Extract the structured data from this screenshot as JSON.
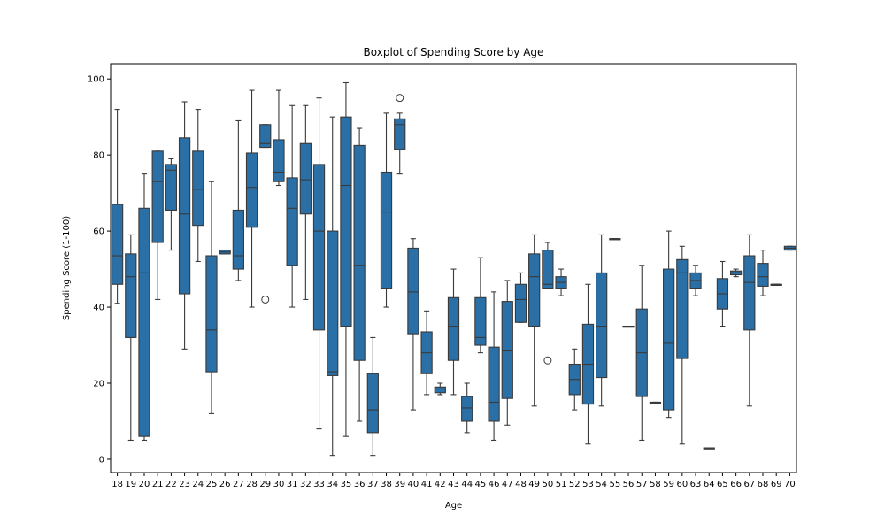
{
  "chart_data": {
    "type": "box",
    "title": "Boxplot of Spending Score by Age",
    "xlabel": "Age",
    "ylabel": "Spending Score (1-100)",
    "ylim": [
      -3.5,
      104
    ],
    "yticks": [
      0,
      20,
      40,
      60,
      80,
      100
    ],
    "legend": "none",
    "grid": false,
    "colors": {
      "box_fill": "#2a6fa6",
      "line": "#3a3a3a"
    },
    "categories": [
      "18",
      "19",
      "20",
      "21",
      "22",
      "23",
      "24",
      "25",
      "26",
      "27",
      "28",
      "29",
      "30",
      "31",
      "32",
      "33",
      "34",
      "35",
      "36",
      "37",
      "38",
      "39",
      "40",
      "41",
      "42",
      "43",
      "44",
      "45",
      "46",
      "47",
      "48",
      "49",
      "50",
      "51",
      "52",
      "53",
      "54",
      "55",
      "56",
      "57",
      "58",
      "59",
      "60",
      "63",
      "64",
      "65",
      "66",
      "67",
      "68",
      "69",
      "70"
    ],
    "boxes": [
      {
        "age": "18",
        "whisker_low": 41,
        "q1": 46,
        "median": 53.5,
        "q3": 67,
        "whisker_high": 92,
        "outliers": []
      },
      {
        "age": "19",
        "whisker_low": 5,
        "q1": 32,
        "median": 48,
        "q3": 54,
        "whisker_high": 59,
        "outliers": []
      },
      {
        "age": "20",
        "whisker_low": 5,
        "q1": 6,
        "median": 49,
        "q3": 66,
        "whisker_high": 75,
        "outliers": []
      },
      {
        "age": "21",
        "whisker_low": 42,
        "q1": 57,
        "median": 73,
        "q3": 81,
        "whisker_high": 81,
        "outliers": []
      },
      {
        "age": "22",
        "whisker_low": 55,
        "q1": 65.5,
        "median": 76,
        "q3": 77.5,
        "whisker_high": 79,
        "outliers": []
      },
      {
        "age": "23",
        "whisker_low": 29,
        "q1": 43.5,
        "median": 64.5,
        "q3": 84.5,
        "whisker_high": 94,
        "outliers": []
      },
      {
        "age": "24",
        "whisker_low": 52,
        "q1": 61.5,
        "median": 71,
        "q3": 81,
        "whisker_high": 92,
        "outliers": []
      },
      {
        "age": "25",
        "whisker_low": 12,
        "q1": 23,
        "median": 34,
        "q3": 53.5,
        "whisker_high": 73,
        "outliers": []
      },
      {
        "age": "26",
        "whisker_low": 54,
        "q1": 54,
        "median": 54.5,
        "q3": 55,
        "whisker_high": 55,
        "outliers": []
      },
      {
        "age": "27",
        "whisker_low": 47,
        "q1": 50,
        "median": 53.5,
        "q3": 65.5,
        "whisker_high": 89,
        "outliers": []
      },
      {
        "age": "28",
        "whisker_low": 40,
        "q1": 61,
        "median": 71.5,
        "q3": 80.5,
        "whisker_high": 97,
        "outliers": []
      },
      {
        "age": "29",
        "whisker_low": 82,
        "q1": 82,
        "median": 83,
        "q3": 88,
        "whisker_high": 88,
        "outliers": [
          42
        ]
      },
      {
        "age": "30",
        "whisker_low": 72,
        "q1": 73,
        "median": 75.5,
        "q3": 84,
        "whisker_high": 97,
        "outliers": []
      },
      {
        "age": "31",
        "whisker_low": 40,
        "q1": 51,
        "median": 66,
        "q3": 74,
        "whisker_high": 93,
        "outliers": []
      },
      {
        "age": "32",
        "whisker_low": 42,
        "q1": 64.5,
        "median": 73.5,
        "q3": 83,
        "whisker_high": 93,
        "outliers": []
      },
      {
        "age": "33",
        "whisker_low": 8,
        "q1": 34,
        "median": 60,
        "q3": 77.5,
        "whisker_high": 95,
        "outliers": []
      },
      {
        "age": "34",
        "whisker_low": 1,
        "q1": 22,
        "median": 23,
        "q3": 60,
        "whisker_high": 90,
        "outliers": []
      },
      {
        "age": "35",
        "whisker_low": 6,
        "q1": 35,
        "median": 72,
        "q3": 90,
        "whisker_high": 99,
        "outliers": []
      },
      {
        "age": "36",
        "whisker_low": 10,
        "q1": 26,
        "median": 51,
        "q3": 82.5,
        "whisker_high": 87,
        "outliers": []
      },
      {
        "age": "37",
        "whisker_low": 1,
        "q1": 7,
        "median": 13,
        "q3": 22.5,
        "whisker_high": 32,
        "outliers": []
      },
      {
        "age": "38",
        "whisker_low": 40,
        "q1": 45,
        "median": 65,
        "q3": 75.5,
        "whisker_high": 91,
        "outliers": []
      },
      {
        "age": "39",
        "whisker_low": 75,
        "q1": 81.5,
        "median": 88,
        "q3": 89.5,
        "whisker_high": 91,
        "outliers": [
          95
        ]
      },
      {
        "age": "40",
        "whisker_low": 13,
        "q1": 33,
        "median": 44,
        "q3": 55.5,
        "whisker_high": 58,
        "outliers": []
      },
      {
        "age": "41",
        "whisker_low": 17,
        "q1": 22.5,
        "median": 28,
        "q3": 33.5,
        "whisker_high": 39,
        "outliers": []
      },
      {
        "age": "42",
        "whisker_low": 17,
        "q1": 17.5,
        "median": 18.5,
        "q3": 19,
        "whisker_high": 20,
        "outliers": []
      },
      {
        "age": "43",
        "whisker_low": 17,
        "q1": 26,
        "median": 35,
        "q3": 42.5,
        "whisker_high": 50,
        "outliers": []
      },
      {
        "age": "44",
        "whisker_low": 7,
        "q1": 10,
        "median": 13.5,
        "q3": 16.5,
        "whisker_high": 20,
        "outliers": []
      },
      {
        "age": "45",
        "whisker_low": 28,
        "q1": 30,
        "median": 32,
        "q3": 42.5,
        "whisker_high": 53,
        "outliers": []
      },
      {
        "age": "46",
        "whisker_low": 5,
        "q1": 10,
        "median": 15,
        "q3": 29.5,
        "whisker_high": 44,
        "outliers": []
      },
      {
        "age": "47",
        "whisker_low": 9,
        "q1": 16,
        "median": 28.5,
        "q3": 41.5,
        "whisker_high": 47,
        "outliers": []
      },
      {
        "age": "48",
        "whisker_low": 36,
        "q1": 36,
        "median": 42,
        "q3": 46,
        "whisker_high": 49,
        "outliers": []
      },
      {
        "age": "49",
        "whisker_low": 14,
        "q1": 35,
        "median": 48,
        "q3": 54,
        "whisker_high": 59,
        "outliers": []
      },
      {
        "age": "50",
        "whisker_low": 45,
        "q1": 45,
        "median": 46,
        "q3": 55,
        "whisker_high": 57,
        "outliers": [
          26
        ]
      },
      {
        "age": "51",
        "whisker_low": 43,
        "q1": 45,
        "median": 46.5,
        "q3": 48,
        "whisker_high": 50,
        "outliers": []
      },
      {
        "age": "52",
        "whisker_low": 13,
        "q1": 17,
        "median": 21,
        "q3": 25,
        "whisker_high": 29,
        "outliers": []
      },
      {
        "age": "53",
        "whisker_low": 4,
        "q1": 14.5,
        "median": 25,
        "q3": 35.5,
        "whisker_high": 46,
        "outliers": []
      },
      {
        "age": "54",
        "whisker_low": 14,
        "q1": 21.5,
        "median": 35,
        "q3": 49,
        "whisker_high": 59,
        "outliers": []
      },
      {
        "age": "55",
        "whisker_low": 58,
        "q1": 58,
        "median": 58,
        "q3": 58,
        "whisker_high": 58,
        "outliers": []
      },
      {
        "age": "56",
        "whisker_low": 35,
        "q1": 35,
        "median": 35,
        "q3": 35,
        "whisker_high": 35,
        "outliers": []
      },
      {
        "age": "57",
        "whisker_low": 5,
        "q1": 16.5,
        "median": 28,
        "q3": 39.5,
        "whisker_high": 51,
        "outliers": []
      },
      {
        "age": "58",
        "whisker_low": 15,
        "q1": 15,
        "median": 15,
        "q3": 15,
        "whisker_high": 15,
        "outliers": []
      },
      {
        "age": "59",
        "whisker_low": 11,
        "q1": 13,
        "median": 30.5,
        "q3": 50,
        "whisker_high": 60,
        "outliers": []
      },
      {
        "age": "60",
        "whisker_low": 4,
        "q1": 26.5,
        "median": 49,
        "q3": 52.5,
        "whisker_high": 56,
        "outliers": []
      },
      {
        "age": "63",
        "whisker_low": 43,
        "q1": 45,
        "median": 47,
        "q3": 49,
        "whisker_high": 51,
        "outliers": []
      },
      {
        "age": "64",
        "whisker_low": 3,
        "q1": 3,
        "median": 3,
        "q3": 3,
        "whisker_high": 3,
        "outliers": []
      },
      {
        "age": "65",
        "whisker_low": 35,
        "q1": 39.5,
        "median": 43.5,
        "q3": 47.5,
        "whisker_high": 52,
        "outliers": []
      },
      {
        "age": "66",
        "whisker_low": 48,
        "q1": 48.5,
        "median": 49,
        "q3": 49.5,
        "whisker_high": 50,
        "outliers": []
      },
      {
        "age": "67",
        "whisker_low": 14,
        "q1": 34,
        "median": 46.5,
        "q3": 53.5,
        "whisker_high": 59,
        "outliers": []
      },
      {
        "age": "68",
        "whisker_low": 43,
        "q1": 45.5,
        "median": 48,
        "q3": 51.5,
        "whisker_high": 55,
        "outliers": []
      },
      {
        "age": "69",
        "whisker_low": 46,
        "q1": 46,
        "median": 46,
        "q3": 46,
        "whisker_high": 46,
        "outliers": []
      },
      {
        "age": "70",
        "whisker_low": 55,
        "q1": 55,
        "median": 55.5,
        "q3": 56,
        "whisker_high": 56,
        "outliers": []
      }
    ]
  }
}
